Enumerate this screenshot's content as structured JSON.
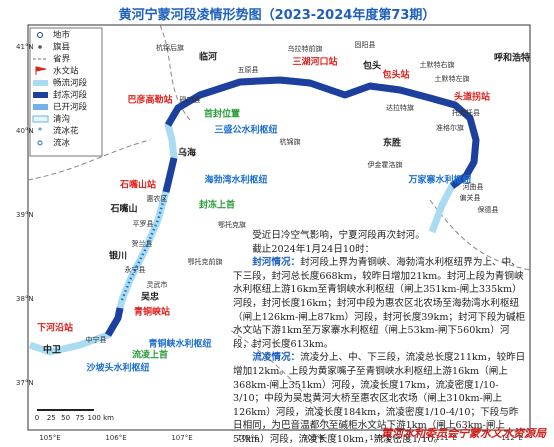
{
  "header": {
    "title": "黄河宁蒙河段凌情形势图（2023-2024年度第73期）"
  },
  "legend": [
    "地市",
    "旗县",
    "省界",
    "水文站",
    "畅流河段",
    "封冻河段",
    "已开河段",
    "清沟",
    "流冰花",
    "流冰"
  ],
  "places": [
    "临河",
    "杭锦后旗",
    "乌拉特前旗",
    "五原县",
    "固阳县",
    "呼和浩特",
    "土默特右旗",
    "土默特左旗",
    "托克托县",
    "包头",
    "三湖河口站",
    "包头站",
    "头道拐站",
    "达拉特旗",
    "磴口县",
    "巴彦高勒站",
    "首封位置",
    "三盛公水利枢纽",
    "杭锦旗",
    "东胜",
    "准格尔旗",
    "伊金霍洛旗",
    "万家寨水利枢纽",
    "河曲县",
    "偏关县",
    "保德县",
    "乌海",
    "石嘴山站",
    "海勃湾水利枢纽",
    "封冻上首",
    "石嘴山",
    "惠农区",
    "鄂托克旗",
    "平罗县",
    "贺兰县",
    "银川",
    "永宁县",
    "灵武市",
    "吴忠",
    "青铜峡站",
    "鄂托克前旗",
    "青铜峡水利枢纽",
    "流凌上首",
    "下河沿站",
    "中卫",
    "中宁县",
    "沙坡头水利枢纽"
  ],
  "lat_labels": [
    "41°N",
    "40°N",
    "39°N",
    "38°N",
    "37°N"
  ],
  "lon_labels": [
    "105°E",
    "106°E",
    "107°E",
    "108°E",
    "109°E",
    "110°E",
    "111°E",
    "112°E"
  ],
  "scale": [
    "0",
    "25",
    "50",
    "75",
    "100",
    "km"
  ],
  "info": {
    "intro": "受近日冷空气影响，宁夏河段再次封河。",
    "time": "截止2024年1月24日10时：",
    "closure": {
      "heading": "封河情况：",
      "text": "封河段上界为青铜峡、海勃湾水利枢纽界为上、中、下三段，封河总长度668km，较昨日增加21km。封河上段为青铜峡水利枢纽上游16km至青铜峡水利枢纽（闸上351km-闸上335km）河段，封河长度16km；封河中段为惠农区北农场至海勃湾水利枢纽（闸上126km-闸上87km）河段，封河长度39km；封河下段为碱柜水文站下游1km至万家寨水利枢纽（闸上53km-闸下560km）河段，封河长度613km。"
    },
    "ice": {
      "heading": "流凌情况：",
      "text": "流凌分上、中、下三段，流凌总长度211km，较昨日增加12km。上段为黄家嘴子至青铜峡水利枢纽上游16km（闸上368km-闸上351km）河段，流凌长度17km，流凌密度1/10-3/10；中段为吴忠黄河大桥至惠农区北农场（闸上310km-闸上126km）河段，流凌长度184km，流凌密度1/10-4/10；下段与昨日相同，为巴音温都尔至碱柜水文站下游1km（闸上63km-闸上53km）河段，流凌长度10km，流凌密度1/10。"
    }
  },
  "footer": "黄河水利委员会宁蒙水文水资源局"
}
